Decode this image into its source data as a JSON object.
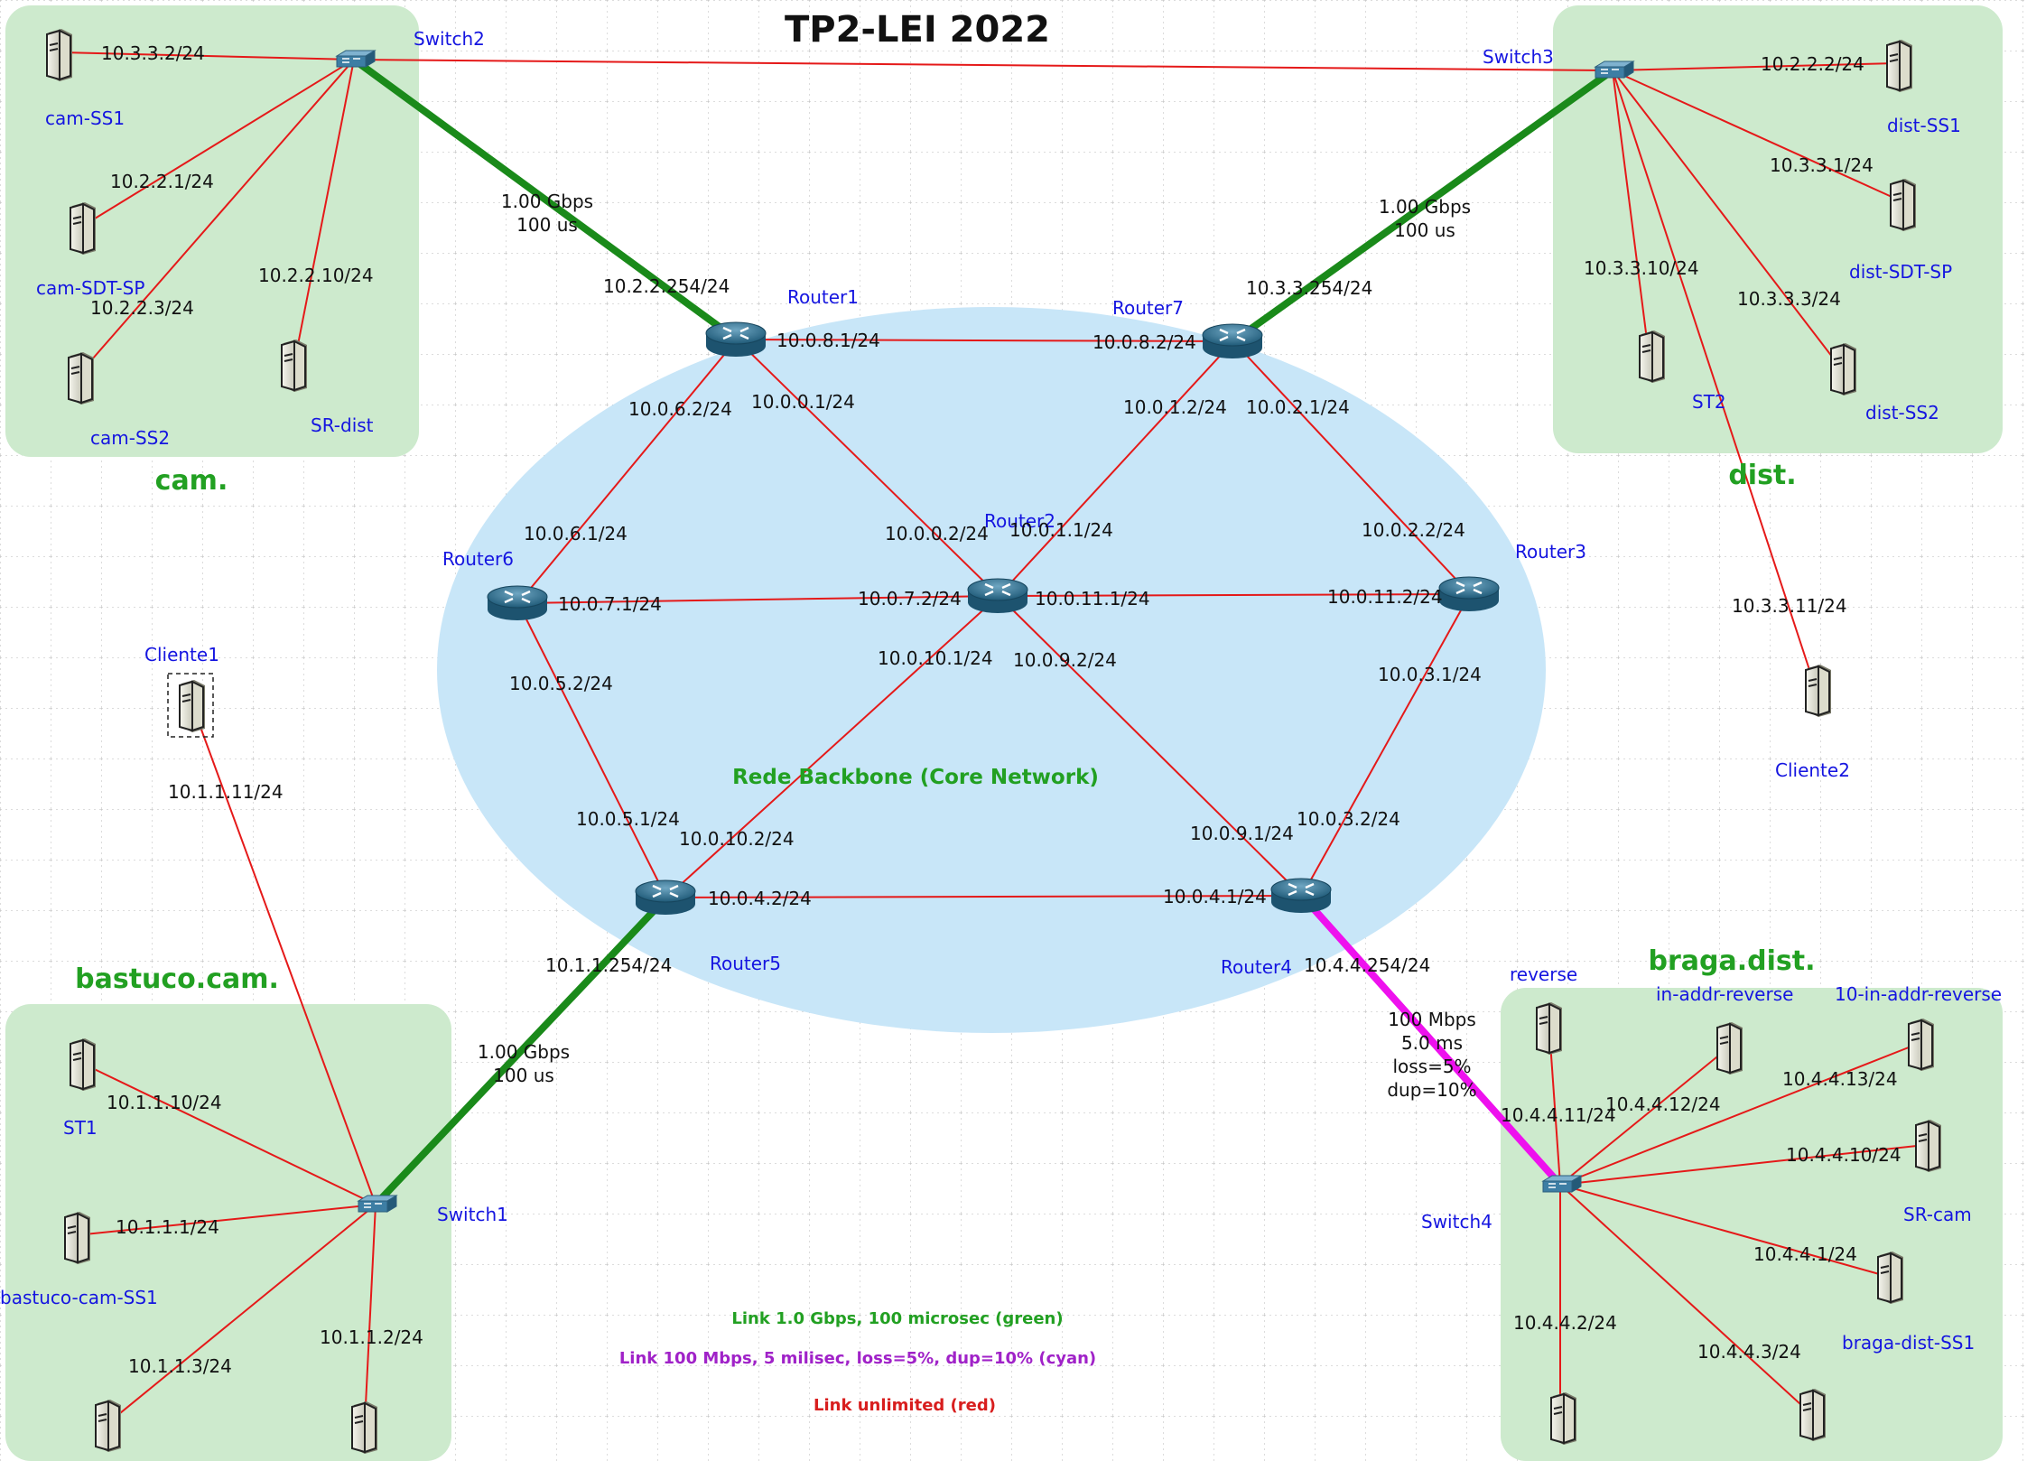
{
  "title": "TP2-LEI 2022",
  "core_label": "Rede Backbone (Core Network)",
  "colors": {
    "red_link": "#e51919",
    "green_link": "#1a8a1a",
    "magenta_link": "#ee11ee",
    "zone_fill": "#cdeacd",
    "core_fill": "#c8e6f8",
    "device_label": "#1515e0",
    "zone_label": "#22a022"
  },
  "zones": {
    "cam": "cam.",
    "dist": "dist.",
    "bastuco": "bastuco.cam.",
    "braga": "braga.dist."
  },
  "legend": {
    "green": "Link 1.0 Gbps, 100 microsec (green)",
    "cyan": "Link 100 Mbps, 5 milisec, loss=5%, dup=10% (cyan)",
    "red": "Link unlimited (red)"
  },
  "routers": {
    "r1": "Router1",
    "r2": "Router2",
    "r3": "Router3",
    "r4": "Router4",
    "r5": "Router5",
    "r6": "Router6",
    "r7": "Router7"
  },
  "switches": {
    "s1": "Switch1",
    "s2": "Switch2",
    "s3": "Switch3",
    "s4": "Switch4"
  },
  "hosts": {
    "cam_ss1": "cam-SS1",
    "cam_sdt_sp": "cam-SDT-SP",
    "cam_ss2": "cam-SS2",
    "sr_dist": "SR-dist",
    "dist_ss1": "dist-SS1",
    "dist_sdt_sp": "dist-SDT-SP",
    "dist_ss2": "dist-SS2",
    "st2": "ST2",
    "cliente1": "Cliente1",
    "cliente2": "Cliente2",
    "st1": "ST1",
    "bastuco_cam_ss1": "bastuco-cam-SS1",
    "reverse": "reverse",
    "in_addr_reverse": "in-addr-reverse",
    "ten_in_addr_reverse": "10-in-addr-reverse",
    "sr_cam": "SR-cam",
    "braga_dist_ss1": "braga-dist-SS1"
  },
  "link_specs": {
    "gbps": [
      "1.00 Gbps",
      "100 us"
    ],
    "mbps": [
      "100 Mbps",
      "5.0 ms",
      "loss=5%",
      "dup=10%"
    ]
  },
  "ips": {
    "r1_r7_a": "10.0.8.1/24",
    "r1_r7_b": "10.0.8.2/24",
    "r1_r6": "10.0.6.2/24",
    "r1_r2": "10.0.0.1/24",
    "r7_r2": "10.0.1.2/24",
    "r7_r3": "10.0.2.1/24",
    "r6_r1": "10.0.6.1/24",
    "r2_r1": "10.0.0.2/24",
    "r2_r7": "10.0.1.1/24",
    "r3_r7": "10.0.2.2/24",
    "r6_r2": "10.0.7.1/24",
    "r2_r6": "10.0.7.2/24",
    "r2_r3": "10.0.11.1/24",
    "r3_r2": "10.0.11.2/24",
    "r6_r5": "10.0.5.2/24",
    "r2_r5": "10.0.10.1/24",
    "r2_r4": "10.0.9.2/24",
    "r3_r4": "10.0.3.1/24",
    "r5_r6": "10.0.5.1/24",
    "r5_r2": "10.0.10.2/24",
    "r4_r2": "10.0.9.1/24",
    "r4_r3": "10.0.3.2/24",
    "r5_r4": "10.0.4.2/24",
    "r4_r5": "10.0.4.1/24",
    "r1_s2": "10.2.2.254/24",
    "r7_s3": "10.3.3.254/24",
    "r5_s1": "10.1.1.254/24",
    "r4_s4": "10.4.4.254/24",
    "cam_ss1": "10.3.3.2/24",
    "cam_sdt_sp": "10.2.2.1/24",
    "cam_ss2": "10.2.2.3/24",
    "sr_dist": "10.2.2.10/24",
    "dist_ss1": "10.2.2.2/24",
    "dist_sdt_sp": "10.3.3.1/24",
    "dist_ss2": "10.3.3.3/24",
    "st2": "10.3.3.10/24",
    "cliente2": "10.3.3.11/24",
    "cliente1": "10.1.1.11/24",
    "st1": "10.1.1.10/24",
    "bastuco_cam_ss1": "10.1.1.1/24",
    "bastuco_h3": "10.1.1.3/24",
    "bastuco_h4": "10.1.1.2/24",
    "reverse": "10.4.4.11/24",
    "in_addr_reverse": "10.4.4.12/24",
    "ten_in_addr_reverse": "10.4.4.13/24",
    "sr_cam": "10.4.4.10/24",
    "braga_dist_ss1": "10.4.4.1/24",
    "braga_h6": "10.4.4.2/24",
    "braga_h7": "10.4.4.3/24"
  }
}
